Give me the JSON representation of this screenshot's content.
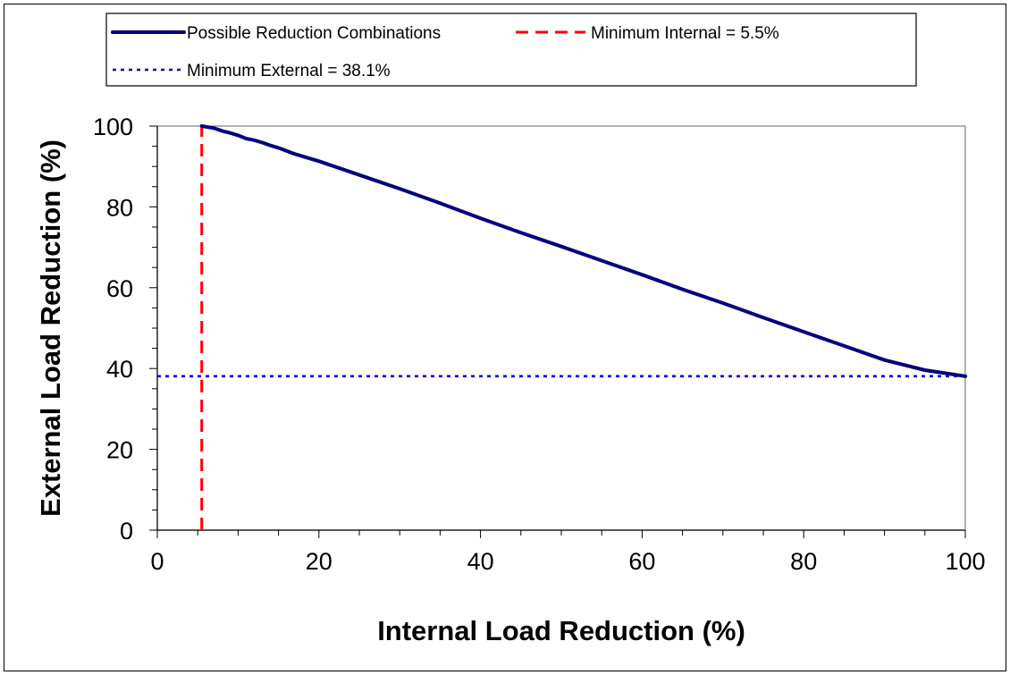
{
  "chart_data": {
    "type": "line",
    "xlabel": "Internal Load Reduction (%)",
    "ylabel": "External Load Reduction (%)",
    "xlim": [
      0,
      100
    ],
    "ylim": [
      0,
      100
    ],
    "xticks": [
      0,
      20,
      40,
      60,
      80,
      100
    ],
    "yticks": [
      0,
      20,
      40,
      60,
      80,
      100
    ],
    "grid": false,
    "legend_position": "top",
    "series": [
      {
        "name": "Possible Reduction Combinations",
        "color": "#000080",
        "style": "solid",
        "x": [
          5.5,
          7,
          8,
          9,
          10,
          11,
          12,
          13,
          14,
          15,
          17,
          20,
          25,
          30,
          35,
          40,
          45,
          50,
          55,
          60,
          65,
          70,
          75,
          80,
          85,
          90,
          95,
          100
        ],
        "y": [
          100,
          99.5,
          98.8,
          98.3,
          97.7,
          96.9,
          96.5,
          95.9,
          95.2,
          94.6,
          93.1,
          91.3,
          87.9,
          84.5,
          80.9,
          77.2,
          73.6,
          70.2,
          66.7,
          63.2,
          59.6,
          56.2,
          52.6,
          49.1,
          45.6,
          42.1,
          39.6,
          38.1
        ]
      },
      {
        "name": "Minimum Internal = 5.5%",
        "color": "#ff0000",
        "style": "dashed",
        "x": [
          5.5,
          5.5
        ],
        "y": [
          0,
          100
        ]
      },
      {
        "name": "Minimum External = 38.1%",
        "color": "#0000cc",
        "style": "dotted",
        "x": [
          0,
          100
        ],
        "y": [
          38.1,
          38.1
        ]
      }
    ]
  }
}
